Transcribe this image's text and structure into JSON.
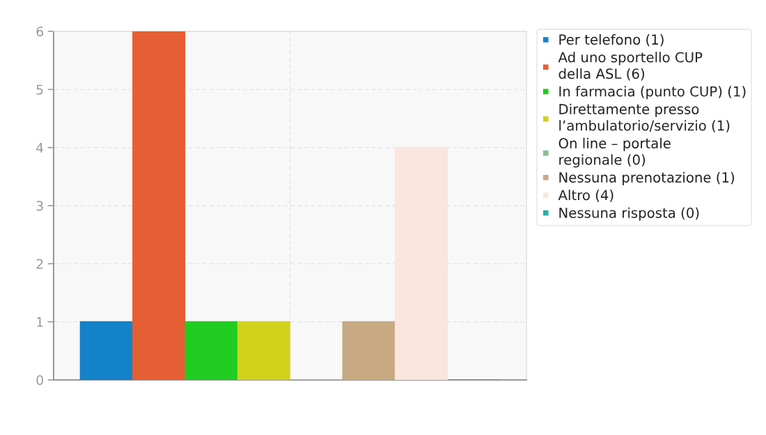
{
  "chart_data": {
    "type": "bar",
    "categories": [
      null
    ],
    "series": [
      {
        "name": "Per telefono (1)",
        "color": "#1482c8",
        "values": [
          1
        ]
      },
      {
        "name": "Ad uno sportello CUP\ndella ASL (6)",
        "color": "#e65f34",
        "values": [
          6
        ]
      },
      {
        "name": "In farmacia (punto CUP) (1)",
        "color": "#21cd21",
        "values": [
          1
        ]
      },
      {
        "name": "Direttamente presso\nl’ambulatorio/servizio (1)",
        "color": "#d2d21d",
        "values": [
          1
        ]
      },
      {
        "name": "On line – portale\nregionale (0)",
        "color": "#8cbc8a",
        "values": [
          0
        ]
      },
      {
        "name": "Nessuna prenotazione (1)",
        "color": "#c8aa82",
        "values": [
          1
        ]
      },
      {
        "name": "Altro (4)",
        "color": "#fae6df",
        "values": [
          4
        ]
      },
      {
        "name": "Nessuna risposta (0)",
        "color": "#20b2aa",
        "values": [
          0
        ]
      }
    ],
    "ylim": [
      0,
      6
    ],
    "yticks": [
      0,
      1,
      2,
      3,
      4,
      5,
      6
    ],
    "grid": true,
    "legend": "top right",
    "tick_labels": "y"
  }
}
